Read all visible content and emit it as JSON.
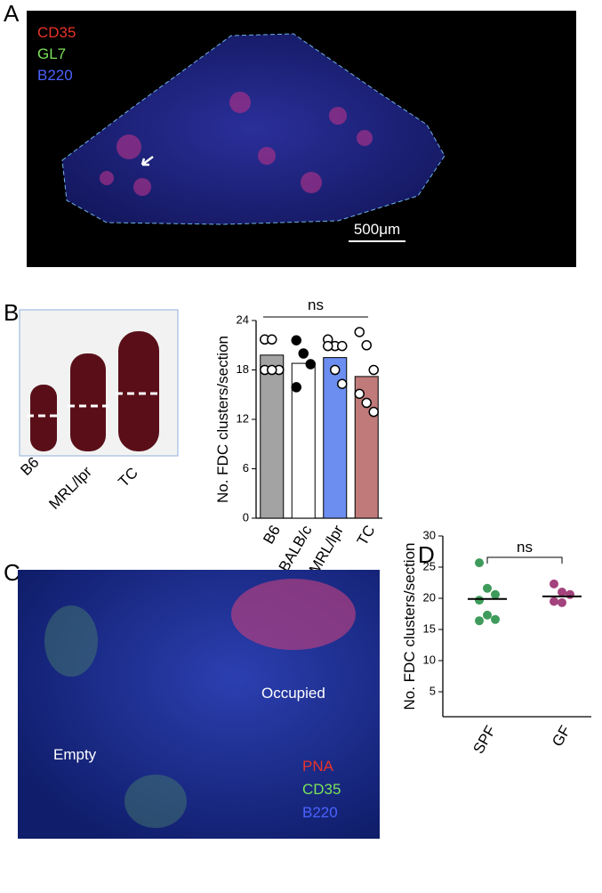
{
  "panels": {
    "a": {
      "letter": "A",
      "stains": [
        "CD35",
        "GL7",
        "B220"
      ],
      "scale": "500μm"
    },
    "b": {
      "letter": "B",
      "spleens": [
        "B6",
        "MRL/lpr",
        "TC"
      ]
    },
    "c": {
      "letter": "C",
      "regions": [
        "Occupied",
        "Empty"
      ],
      "stains": [
        "PNA",
        "CD35",
        "B220"
      ]
    },
    "d": {
      "letter": "D"
    }
  },
  "chart_data": [
    {
      "type": "bar",
      "ylabel": "No. FDC clusters/section",
      "annotation": "ns",
      "categories": [
        "B6",
        "BALB/c",
        "MRL/lpr",
        "TC"
      ],
      "values": [
        19.8,
        18.8,
        19.5,
        17.2
      ],
      "colors": [
        "#a3a3a3",
        "#ffffff",
        "#6b8ef0",
        "#c07a7a"
      ],
      "points": [
        [
          21.7,
          21.7,
          18,
          18,
          18
        ],
        [
          21.6,
          20,
          18.7,
          15.9
        ],
        [
          21.7,
          20.9,
          20.9,
          20.9,
          18,
          16.3
        ],
        [
          22.6,
          21,
          18,
          15.1,
          14,
          12.9
        ]
      ],
      "point_fills": [
        "#ffffff",
        "#000000",
        "#ffffff",
        "#ffffff"
      ],
      "ylim": [
        0,
        24
      ],
      "yticks": [
        0,
        6,
        12,
        18,
        24
      ]
    },
    {
      "type": "scatter",
      "ylabel": "No. FDC clusters/section",
      "annotation": "ns",
      "categories": [
        "SPF",
        "GF"
      ],
      "points": [
        [
          25.7,
          21.6,
          20.6,
          19.7,
          17.3,
          16.6,
          16.4
        ],
        [
          22.3,
          21,
          20.6,
          19.5,
          19.3
        ]
      ],
      "means": [
        19.9,
        20.3
      ],
      "colors": [
        "#3f9b5b",
        "#a3427c"
      ],
      "ylim": [
        1,
        30
      ],
      "yticks": [
        5,
        10,
        15,
        20,
        25,
        30
      ]
    }
  ]
}
